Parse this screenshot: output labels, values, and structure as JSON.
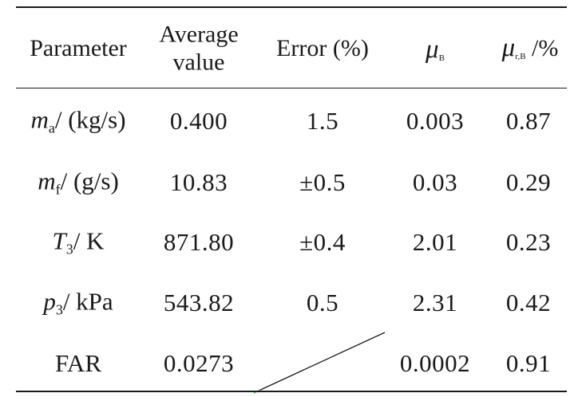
{
  "table": {
    "headers": {
      "parameter": "Parameter",
      "average_line1": "Average",
      "average_line2": "value",
      "error": "Error (%)",
      "mu_symbol": "μ",
      "mu_b_sub": "B",
      "mu_r_symbol": "μ",
      "mu_r_sub": "r,B",
      "mu_r_suffix": " /%"
    },
    "rows": [
      {
        "sym": "m",
        "sub": "a",
        "unit": "/ (kg/s)",
        "average": "0.400",
        "error": "1.5",
        "mu_b": "0.003",
        "mu_rb": "0.87"
      },
      {
        "sym": "m",
        "sub": "f",
        "unit": "/ (g/s)",
        "average": "10.83",
        "error": "±0.5",
        "mu_b": "0.03",
        "mu_rb": "0.29"
      },
      {
        "sym": "T",
        "sub": "3",
        "unit": "/ K",
        "average": "871.80",
        "error": "±0.4",
        "mu_b": "2.01",
        "mu_rb": "0.23"
      },
      {
        "sym": "p",
        "sub": "3",
        "unit": "/ kPa",
        "average": "543.82",
        "error": "0.5",
        "mu_b": "2.31",
        "mu_rb": "0.42"
      },
      {
        "plain": "FAR",
        "average": "0.0273",
        "error": "",
        "mu_b": "0.0002",
        "mu_rb": "0.91"
      }
    ]
  }
}
